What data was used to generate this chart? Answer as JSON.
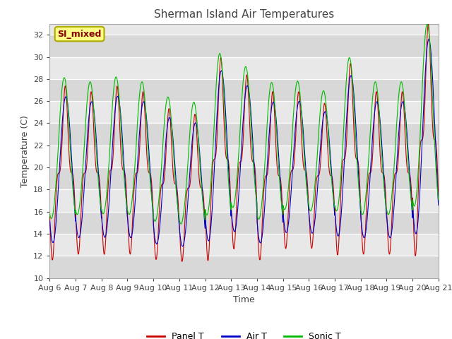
{
  "title": "Sherman Island Air Temperatures",
  "xlabel": "Time",
  "ylabel": "Temperature (C)",
  "ylim": [
    10,
    33
  ],
  "yticks": [
    10,
    12,
    14,
    16,
    18,
    20,
    22,
    24,
    26,
    28,
    30,
    32
  ],
  "date_start": 6,
  "date_end": 21,
  "num_days": 15,
  "annotation_text": "SI_mixed",
  "panel_color": "#cc0000",
  "air_color": "#0000cc",
  "sonic_color": "#00bb00",
  "bg_color": "#e8e8e8",
  "legend_labels": [
    "Panel T",
    "Air T",
    "Sonic T"
  ],
  "title_fontsize": 11,
  "axis_fontsize": 9,
  "tick_fontsize": 8
}
